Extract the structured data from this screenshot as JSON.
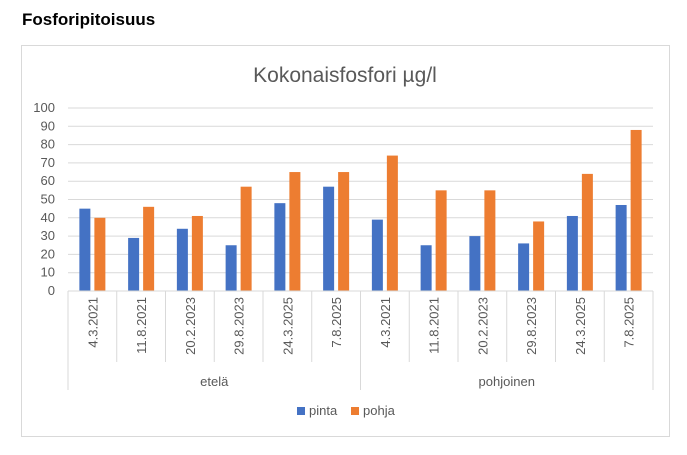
{
  "page": {
    "heading": "Fosforipitoisuus"
  },
  "chart_data": {
    "type": "bar",
    "title": "Kokonaisfosfori µg/l",
    "xlabel": "",
    "ylabel": "",
    "ylim": [
      0,
      100
    ],
    "yticks": [
      0,
      10,
      20,
      30,
      40,
      50,
      60,
      70,
      80,
      90,
      100
    ],
    "grid": true,
    "legend_position": "bottom",
    "groups": [
      {
        "name": "etelä",
        "categories": [
          "4.3.2021",
          "11.8.2021",
          "20.2.2023",
          "29.8.2023",
          "24.3.2025",
          "7.8.2025"
        ]
      },
      {
        "name": "pohjoinen",
        "categories": [
          "4.3.2021",
          "11.8.2021",
          "20.2.2023",
          "29.8.2023",
          "24.3.2025",
          "7.8.2025"
        ]
      }
    ],
    "series": [
      {
        "name": "pinta",
        "color": "#4472c4",
        "values": [
          45,
          29,
          34,
          25,
          48,
          57,
          39,
          25,
          30,
          26,
          41,
          47
        ]
      },
      {
        "name": "pohja",
        "color": "#ed7d31",
        "values": [
          40,
          46,
          41,
          57,
          65,
          65,
          74,
          55,
          55,
          38,
          64,
          88
        ]
      }
    ]
  }
}
